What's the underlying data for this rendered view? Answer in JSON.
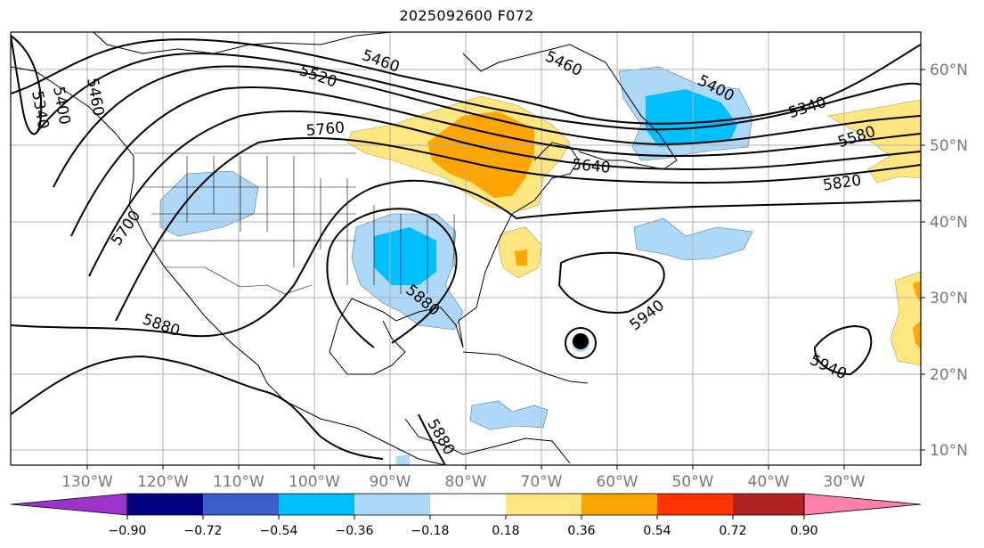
{
  "title": "2025092600 F072",
  "lat_labels": [
    "60°N",
    "50°N",
    "40°N",
    "30°N",
    "20°N",
    "10°N"
  ],
  "lon_labels": [
    "130°W",
    "120°W",
    "110°W",
    "100°W",
    "90°W",
    "80°W",
    "70°W",
    "60°W",
    "50°W",
    "40°W",
    "30°W"
  ],
  "contour_labels": [
    "5520",
    "5460",
    "5460",
    "5400",
    "5340",
    "5580",
    "5760",
    "5640",
    "5820",
    "5700",
    "5880",
    "5880",
    "5940",
    "5940",
    "5880",
    "5340",
    "5400",
    "5460"
  ],
  "colorbar": {
    "ticks": [
      "−0.90",
      "−0.72",
      "−0.54",
      "−0.36",
      "−0.18",
      "0.18",
      "0.36",
      "0.54",
      "0.72",
      "0.90"
    ],
    "colors": [
      "#9b33cc",
      "#000080",
      "#3a5fcd",
      "#00bfff",
      "#add8f7",
      "#ffffff",
      "#ffe680",
      "#ffa500",
      "#ff3300",
      "#b22222",
      "#ff80aa"
    ]
  }
}
